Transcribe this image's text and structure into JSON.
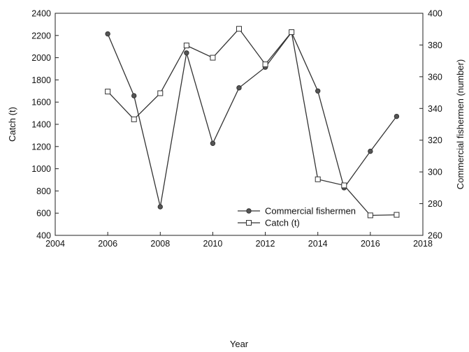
{
  "chart_data": {
    "type": "line",
    "xlabel": "Year",
    "ylabel_left": "Catch (t)",
    "ylabel_right": "Commercial fishermen (number)",
    "xlim": [
      2004,
      2018
    ],
    "xticks": [
      2004,
      2006,
      2008,
      2010,
      2012,
      2014,
      2016,
      2018
    ],
    "ylim_left": [
      400,
      2400
    ],
    "yticks_left": [
      400,
      600,
      800,
      1000,
      1200,
      1400,
      1600,
      1800,
      2000,
      2200,
      2400
    ],
    "ylim_right": [
      260,
      400
    ],
    "yticks_right": [
      260,
      280,
      300,
      320,
      340,
      360,
      380,
      400
    ],
    "grid": false,
    "legend_position": "bottom-right",
    "series": [
      {
        "name": "Commercial fishermen",
        "axis": "right",
        "marker": "filled-circle",
        "color": "#333333",
        "x": [
          2006,
          2007,
          2008,
          2009,
          2010,
          2011,
          2012,
          2013,
          2014,
          2015,
          2016,
          2017
        ],
        "values": [
          387,
          348,
          278,
          375,
          318,
          353,
          366,
          388,
          351,
          290,
          313,
          335
        ]
      },
      {
        "name": "Catch (t)",
        "axis": "left",
        "marker": "open-square",
        "color": "#333333",
        "x": [
          2006,
          2007,
          2008,
          2009,
          2010,
          2011,
          2012,
          2013,
          2014,
          2015,
          2016,
          2017
        ],
        "values": [
          1695,
          1445,
          1680,
          2110,
          2000,
          2260,
          1940,
          2230,
          905,
          850,
          580,
          585
        ]
      }
    ]
  }
}
